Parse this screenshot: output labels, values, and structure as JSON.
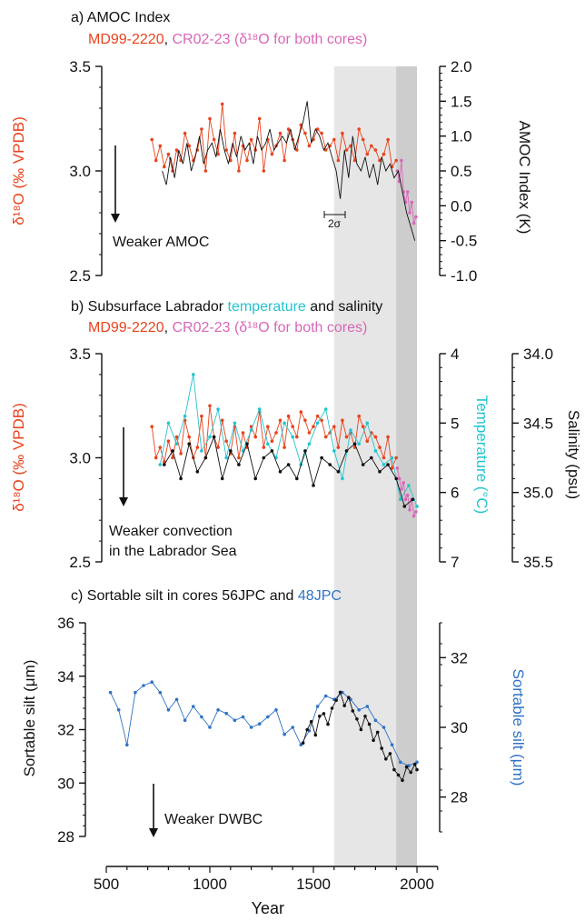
{
  "colors": {
    "md": "#e8431e",
    "cr": "#d966b8",
    "temp": "#22c4cf",
    "ss48": "#2f72c4",
    "black": "#111111",
    "shade_light": "#e6e6e6",
    "shade_dark": "#cdcdcd"
  },
  "chart_data": [
    {
      "type": "line",
      "panel": "a",
      "title": "a) AMOC Index",
      "subtitle_parts": [
        {
          "text": "MD99-2220",
          "color_key": "md"
        },
        {
          "text": ", ",
          "color_key": "black"
        },
        {
          "text": "CR02-23 (δ¹⁸O for both cores)",
          "color_key": "cr"
        }
      ],
      "left_axis": {
        "label": "δ¹⁸O (‰ VPDB)",
        "ticks": [
          "3.5",
          "3.0",
          "2.5"
        ],
        "range": [
          2.5,
          3.5
        ],
        "color_key": "md"
      },
      "right_axis": {
        "label": "AMOC Index (K)",
        "ticks": [
          "2.0",
          "1.5",
          "1.0",
          "0.5",
          "0.0",
          "-0.5",
          "-1.0"
        ],
        "range": [
          -1.0,
          2.0
        ]
      },
      "annotation": "Weaker AMOC",
      "errorbar_label": "2σ",
      "shaded_ranges": [
        [
          1600,
          2000
        ],
        [
          1900,
          2000
        ]
      ],
      "series": [
        {
          "name": "MD99-2220",
          "axis": "left",
          "color_key": "md",
          "style": "line+points",
          "x": [
            720,
            740,
            760,
            780,
            800,
            820,
            840,
            860,
            880,
            900,
            920,
            940,
            960,
            980,
            1000,
            1020,
            1040,
            1060,
            1080,
            1100,
            1120,
            1140,
            1160,
            1180,
            1200,
            1220,
            1240,
            1260,
            1280,
            1300,
            1320,
            1340,
            1360,
            1380,
            1400,
            1420,
            1440,
            1460,
            1480,
            1500,
            1520,
            1540,
            1560,
            1580,
            1600,
            1620,
            1640,
            1660,
            1680,
            1700,
            1720,
            1740,
            1760,
            1780,
            1800,
            1820,
            1840,
            1860,
            1880,
            1900
          ],
          "y": [
            3.15,
            3.05,
            3.12,
            3.02,
            3.08,
            3.0,
            3.1,
            3.05,
            3.18,
            3.12,
            3.05,
            3.1,
            3.2,
            3.0,
            3.25,
            3.15,
            3.08,
            3.32,
            3.1,
            3.05,
            3.18,
            3.0,
            3.12,
            3.05,
            3.15,
            3.1,
            3.25,
            3.0,
            3.15,
            3.08,
            3.12,
            3.18,
            3.05,
            3.2,
            3.15,
            3.1,
            3.22,
            3.18,
            3.12,
            3.15,
            3.2,
            3.18,
            3.1,
            3.12,
            3.15,
            3.05,
            3.18,
            3.1,
            3.12,
            3.05,
            3.2,
            3.15,
            3.08,
            3.12,
            3.1,
            3.05,
            3.08,
            3.15,
            3.02,
            3.05
          ]
        },
        {
          "name": "CR02-23",
          "axis": "left",
          "color_key": "cr",
          "style": "line+points",
          "x": [
            1905,
            1915,
            1925,
            1935,
            1945,
            1955,
            1965,
            1975,
            1985,
            1995
          ],
          "y": [
            3.0,
            2.95,
            3.05,
            2.9,
            2.85,
            2.9,
            2.8,
            2.85,
            2.75,
            2.78
          ]
        },
        {
          "name": "AMOC Index",
          "axis": "right",
          "color_key": "black",
          "style": "line",
          "x": [
            770,
            790,
            810,
            830,
            850,
            870,
            890,
            910,
            930,
            950,
            970,
            990,
            1010,
            1030,
            1050,
            1070,
            1090,
            1110,
            1130,
            1150,
            1170,
            1190,
            1210,
            1230,
            1250,
            1270,
            1290,
            1310,
            1330,
            1350,
            1370,
            1390,
            1410,
            1430,
            1450,
            1470,
            1490,
            1510,
            1530,
            1550,
            1570,
            1590,
            1610,
            1630,
            1650,
            1670,
            1690,
            1710,
            1730,
            1750,
            1770,
            1790,
            1810,
            1830,
            1850,
            1870,
            1890,
            1910,
            1930,
            1950,
            1970,
            1990
          ],
          "y": [
            0.5,
            0.3,
            0.7,
            0.4,
            0.8,
            0.6,
            0.9,
            0.5,
            0.7,
            1.0,
            0.6,
            0.8,
            0.9,
            0.7,
            1.1,
            0.8,
            0.6,
            0.9,
            0.7,
            1.0,
            0.8,
            0.9,
            0.6,
            1.0,
            0.8,
            0.9,
            1.1,
            0.8,
            0.9,
            1.0,
            0.9,
            1.1,
            0.8,
            1.0,
            1.2,
            1.5,
            0.9,
            1.1,
            1.0,
            0.8,
            0.9,
            0.7,
            0.5,
            0.1,
            0.8,
            0.4,
            1.0,
            0.6,
            0.5,
            0.7,
            0.4,
            0.6,
            0.3,
            0.7,
            0.5,
            0.6,
            0.4,
            0.5,
            0.2,
            -0.1,
            -0.3,
            -0.5
          ]
        }
      ]
    },
    {
      "type": "line",
      "panel": "b",
      "title_parts": [
        {
          "text": "b) Subsurface Labrador ",
          "color_key": "black"
        },
        {
          "text": "temperature",
          "color_key": "temp"
        },
        {
          "text": " and salinity",
          "color_key": "black"
        }
      ],
      "subtitle_parts": [
        {
          "text": "MD99-2220",
          "color_key": "md"
        },
        {
          "text": ", ",
          "color_key": "black"
        },
        {
          "text": "CR02-23 (δ¹⁸O for both cores)",
          "color_key": "cr"
        }
      ],
      "left_axis": {
        "label": "δ¹⁸O (‰ VPDB)",
        "ticks": [
          "3.5",
          "3.0",
          "2.5"
        ],
        "range": [
          2.5,
          3.5
        ],
        "color_key": "md"
      },
      "right_axis": {
        "label": "Temperature (°C)",
        "ticks": [
          "4",
          "5",
          "6",
          "7"
        ],
        "range": [
          4,
          7
        ],
        "inverted": true,
        "color_key": "temp"
      },
      "right_axis2": {
        "label": "Salinity (psu)",
        "ticks": [
          "34.0",
          "34.5",
          "35.0",
          "35.5"
        ],
        "range": [
          34.0,
          35.5
        ],
        "inverted": true
      },
      "annotation_lines": [
        "Weaker convection",
        "in the Labrador Sea"
      ],
      "series": [
        {
          "name": "MD99-2220",
          "axis": "left",
          "color_key": "md",
          "style": "line+points",
          "x": [
            720,
            740,
            760,
            780,
            800,
            820,
            840,
            860,
            880,
            900,
            920,
            940,
            960,
            980,
            1000,
            1020,
            1040,
            1060,
            1080,
            1100,
            1120,
            1140,
            1160,
            1180,
            1200,
            1220,
            1240,
            1260,
            1280,
            1300,
            1320,
            1340,
            1360,
            1380,
            1400,
            1420,
            1440,
            1460,
            1480,
            1500,
            1520,
            1540,
            1560,
            1580,
            1600,
            1620,
            1640,
            1660,
            1680,
            1700,
            1720,
            1740,
            1760,
            1780,
            1800,
            1820,
            1840,
            1860,
            1880,
            1900
          ],
          "y": [
            3.15,
            3.0,
            3.05,
            2.98,
            3.08,
            3.0,
            3.1,
            3.02,
            3.18,
            3.1,
            3.0,
            3.05,
            3.2,
            3.0,
            3.25,
            3.1,
            3.05,
            3.18,
            3.08,
            3.02,
            3.15,
            3.0,
            3.12,
            3.05,
            3.15,
            3.1,
            3.22,
            3.05,
            3.15,
            3.08,
            3.12,
            3.18,
            3.05,
            3.2,
            3.15,
            3.1,
            3.22,
            3.18,
            3.12,
            3.15,
            3.2,
            3.18,
            3.1,
            3.12,
            3.15,
            3.05,
            3.18,
            3.1,
            3.12,
            3.05,
            3.2,
            3.15,
            3.08,
            3.12,
            3.1,
            3.05,
            3.0,
            3.1,
            2.95,
            3.0
          ]
        },
        {
          "name": "CR02-23",
          "axis": "left",
          "color_key": "cr",
          "style": "line+points",
          "x": [
            1905,
            1915,
            1925,
            1935,
            1945,
            1955,
            1965,
            1975,
            1985,
            1995
          ],
          "y": [
            2.95,
            2.9,
            2.85,
            2.88,
            2.8,
            2.82,
            2.75,
            2.8,
            2.72,
            2.74
          ]
        },
        {
          "name": "Temperature",
          "axis": "right",
          "color_key": "temp",
          "style": "line+points",
          "x": [
            760,
            800,
            840,
            880,
            920,
            960,
            1000,
            1040,
            1080,
            1120,
            1160,
            1200,
            1240,
            1280,
            1320,
            1360,
            1400,
            1440,
            1480,
            1520,
            1560,
            1600,
            1640,
            1680,
            1720,
            1760,
            1800,
            1840,
            1880,
            1920,
            1960,
            2000
          ],
          "y": [
            5.6,
            5.0,
            5.3,
            4.9,
            4.3,
            5.4,
            5.2,
            4.8,
            5.5,
            5.0,
            5.4,
            5.1,
            4.8,
            5.3,
            5.5,
            5.0,
            5.2,
            5.6,
            5.3,
            5.0,
            4.8,
            5.4,
            5.8,
            5.1,
            5.3,
            5.0,
            5.4,
            5.6,
            5.5,
            6.1,
            5.9,
            6.2
          ]
        },
        {
          "name": "Salinity",
          "axis": "right2",
          "color_key": "black",
          "style": "line+points",
          "x": [
            780,
            820,
            860,
            900,
            940,
            980,
            1020,
            1060,
            1100,
            1140,
            1180,
            1220,
            1260,
            1300,
            1340,
            1380,
            1420,
            1460,
            1500,
            1540,
            1580,
            1620,
            1660,
            1700,
            1740,
            1780,
            1820,
            1860,
            1900,
            1940,
            1980
          ],
          "y": [
            34.8,
            34.7,
            34.9,
            34.65,
            34.85,
            34.75,
            34.6,
            34.9,
            34.7,
            34.8,
            34.65,
            34.9,
            34.75,
            34.7,
            34.85,
            34.8,
            34.9,
            34.7,
            34.95,
            34.75,
            34.8,
            34.85,
            34.7,
            34.65,
            34.8,
            34.75,
            34.85,
            34.8,
            34.9,
            35.1,
            35.05
          ]
        }
      ]
    },
    {
      "type": "line",
      "panel": "c",
      "title_parts": [
        {
          "text": "c) Sortable silt in cores 56JPC and ",
          "color_key": "black"
        },
        {
          "text": "48JPC",
          "color_key": "ss48"
        }
      ],
      "left_axis": {
        "label": "Sortable silt (μm)",
        "ticks": [
          "36",
          "34",
          "32",
          "30",
          "28"
        ],
        "range": [
          28,
          36
        ]
      },
      "right_axis": {
        "label": "Sortable silt (μm)",
        "ticks": [
          "32",
          "30",
          "28"
        ],
        "range": [
          27,
          33
        ],
        "color_key": "ss48"
      },
      "annotation": "Weaker DWBC",
      "x_axis": {
        "label": "Year",
        "ticks": [
          "500",
          "1000",
          "1500",
          "2000"
        ],
        "range": [
          500,
          2100
        ]
      },
      "series": [
        {
          "name": "48JPC",
          "axis": "right",
          "color_key": "ss48",
          "style": "line+points",
          "x": [
            520,
            560,
            600,
            640,
            680,
            720,
            760,
            800,
            840,
            880,
            920,
            960,
            1000,
            1040,
            1080,
            1120,
            1160,
            1200,
            1240,
            1280,
            1320,
            1360,
            1400,
            1440,
            1480,
            1520,
            1560,
            1600,
            1640,
            1680,
            1720,
            1760,
            1800,
            1840,
            1880,
            1920,
            1960,
            2000
          ],
          "y": [
            31.0,
            30.5,
            29.5,
            31.0,
            31.2,
            31.3,
            31.0,
            30.5,
            30.8,
            30.2,
            30.6,
            30.3,
            30.0,
            30.5,
            30.4,
            30.2,
            30.3,
            30.0,
            30.1,
            30.3,
            30.5,
            29.8,
            30.0,
            29.5,
            29.9,
            30.6,
            30.9,
            30.8,
            31.0,
            30.8,
            30.5,
            30.6,
            30.2,
            30.0,
            29.5,
            29.0,
            28.9,
            29.0
          ]
        },
        {
          "name": "56JPC",
          "axis": "left",
          "color_key": "black",
          "style": "line+points",
          "x": [
            1450,
            1470,
            1490,
            1510,
            1530,
            1550,
            1570,
            1590,
            1610,
            1630,
            1650,
            1670,
            1690,
            1710,
            1730,
            1750,
            1770,
            1790,
            1810,
            1830,
            1850,
            1870,
            1890,
            1910,
            1930,
            1950,
            1970,
            1990,
            2000
          ],
          "y": [
            31.5,
            32.0,
            32.3,
            31.8,
            32.5,
            32.6,
            32.2,
            32.8,
            33.1,
            33.4,
            32.9,
            33.2,
            32.7,
            32.4,
            32.0,
            32.5,
            32.2,
            31.6,
            31.9,
            31.3,
            30.9,
            31.1,
            30.5,
            30.3,
            30.1,
            30.6,
            30.4,
            30.7,
            30.5
          ]
        }
      ]
    }
  ]
}
